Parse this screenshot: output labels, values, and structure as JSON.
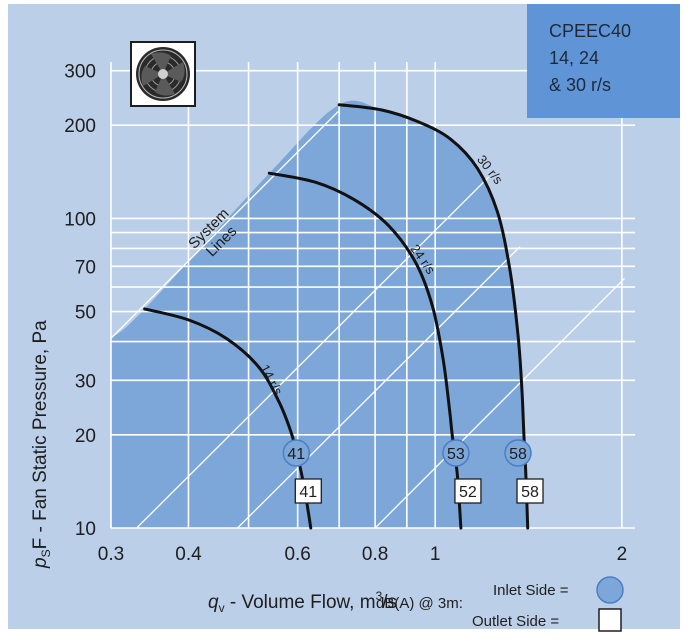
{
  "model_box": {
    "line1": "CPEEC40",
    "line2": "14, 24",
    "line3": "& 30 r/s"
  },
  "colors": {
    "panel": "#bccfe8",
    "operating_area": "#7ea7d9",
    "grid": "#ffffff",
    "curve": "#111111",
    "model_box": "#5f95d6",
    "inlet_badge": "#7ea7d9"
  },
  "icon": "axial-fan-icon",
  "system_lines_label": {
    "line1": "System",
    "line2": "Lines"
  },
  "legend": {
    "prefix": "dB(A) @ 3m:",
    "inlet_label": "Inlet Side =",
    "outlet_label": "Outlet  Side ="
  },
  "chart_data": {
    "type": "line",
    "xscale": "log",
    "yscale": "log",
    "xlim": [
      0.3,
      2.1
    ],
    "ylim": [
      10,
      320
    ],
    "xticks": [
      {
        "value": 0.3,
        "label": "0.3"
      },
      {
        "value": 0.4,
        "label": "0.4"
      },
      {
        "value": 0.6,
        "label": "0.6"
      },
      {
        "value": 0.8,
        "label": "0.8"
      },
      {
        "value": 1,
        "label": "1"
      },
      {
        "value": 2,
        "label": "2"
      }
    ],
    "yticks": [
      {
        "value": 10,
        "label": "10"
      },
      {
        "value": 20,
        "label": "20"
      },
      {
        "value": 30,
        "label": "30"
      },
      {
        "value": 50,
        "label": "50"
      },
      {
        "value": 70,
        "label": "70"
      },
      {
        "value": 100,
        "label": "100"
      },
      {
        "value": 200,
        "label": "200"
      },
      {
        "value": 300,
        "label": "300"
      }
    ],
    "grid_x": [
      0.3,
      0.4,
      0.5,
      0.6,
      0.7,
      0.8,
      0.9,
      1,
      2
    ],
    "grid_y": [
      10,
      20,
      30,
      40,
      50,
      60,
      70,
      80,
      90,
      100,
      200,
      300
    ],
    "xlabel": {
      "q": "q",
      "sub": "v",
      "text": " - Volume Flow, m",
      "sup": "3",
      "tail": "/s"
    },
    "ylabel": {
      "p": "p",
      "sub": "S",
      "text": "F - Fan Static Pressure, Pa"
    },
    "grid": true,
    "series": [
      {
        "name": "14 r/s",
        "points": [
          [
            0.34,
            51
          ],
          [
            0.4,
            47
          ],
          [
            0.46,
            41
          ],
          [
            0.52,
            33
          ],
          [
            0.56,
            25.5
          ],
          [
            0.585,
            20.5
          ],
          [
            0.6,
            17
          ],
          [
            0.615,
            13.5
          ],
          [
            0.63,
            10
          ]
        ],
        "inlet_db": "41",
        "outlet_db": "41"
      },
      {
        "name": "24 r/s",
        "points": [
          [
            0.54,
            140
          ],
          [
            0.64,
            131
          ],
          [
            0.74,
            115
          ],
          [
            0.84,
            95
          ],
          [
            0.93,
            72
          ],
          [
            0.99,
            52
          ],
          [
            1.03,
            35
          ],
          [
            1.055,
            24
          ],
          [
            1.065,
            20
          ],
          [
            1.085,
            15
          ],
          [
            1.1,
            10
          ]
        ],
        "inlet_db": "53",
        "outlet_db": "52"
      },
      {
        "name": "30 r/s",
        "points": [
          [
            0.7,
            233
          ],
          [
            0.82,
            224
          ],
          [
            0.94,
            205
          ],
          [
            1.06,
            180
          ],
          [
            1.17,
            145
          ],
          [
            1.26,
            105
          ],
          [
            1.32,
            68
          ],
          [
            1.36,
            42
          ],
          [
            1.38,
            28
          ],
          [
            1.39,
            20
          ],
          [
            1.4,
            15
          ],
          [
            1.41,
            10
          ]
        ],
        "inlet_db": "58",
        "outlet_db": "58"
      }
    ],
    "system_lines": [
      [
        [
          0.3,
          41
        ],
        [
          0.7,
          223
        ]
      ],
      [
        [
          0.33,
          10
        ],
        [
          1.22,
          136
        ]
      ],
      [
        [
          0.48,
          10
        ],
        [
          1.37,
          81
        ]
      ],
      [
        [
          0.8,
          10
        ],
        [
          2.02,
          64
        ]
      ]
    ],
    "operating_area_outline": [
      [
        0.3,
        10
      ],
      [
        0.3,
        41
      ],
      [
        0.34,
        51
      ],
      [
        0.54,
        140
      ],
      [
        0.7,
        233
      ],
      [
        0.82,
        224
      ],
      [
        0.94,
        205
      ],
      [
        1.06,
        180
      ],
      [
        1.17,
        145
      ],
      [
        1.26,
        105
      ],
      [
        1.32,
        68
      ],
      [
        1.36,
        42
      ],
      [
        1.38,
        28
      ],
      [
        1.39,
        20
      ],
      [
        1.4,
        15
      ],
      [
        1.41,
        10
      ]
    ]
  }
}
